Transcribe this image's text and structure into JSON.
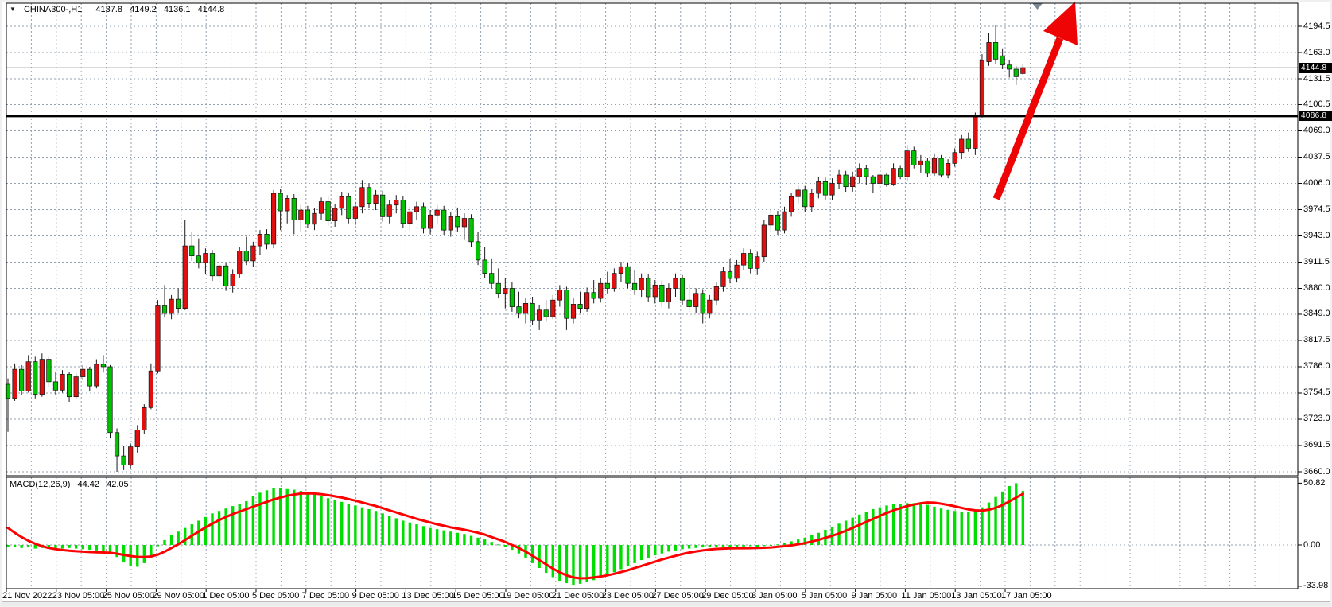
{
  "window": {
    "symbol_timeframe": "CHINA300-,H1",
    "ohlc": {
      "open": "4137.8",
      "high": "4149.2",
      "low": "4136.1",
      "close": "4144.8"
    }
  },
  "price_axis": {
    "current_price_badge": "4144.8",
    "line_price_badge": "4086.8"
  },
  "macd_panel": {
    "label": "MACD(12,26,9)",
    "main_value": "44.42",
    "signal_value": "42.05"
  },
  "colors": {
    "bull_candle": "#e01010",
    "bear_candle": "#00c400",
    "macd_histogram": "#00dd00",
    "macd_signal": "#ff0000",
    "support_line": "#000000",
    "arrow": "#ee0404",
    "grid": "#93a1b1",
    "badge_bg": "#000000",
    "badge_text": "#ffffff"
  },
  "chart_data": {
    "type": "candlestick",
    "symbol": "CHINA300-",
    "timeframe": "H1",
    "title": "CHINA300-,H1  4137.8 4149.2 4136.1 4144.8",
    "legend_position": "none",
    "grid": true,
    "price_axis_ticks": [
      4194.5,
      4163.0,
      4131.5,
      4100.5,
      4069.0,
      4037.5,
      4006.0,
      3974.5,
      3943.0,
      3911.5,
      3880.0,
      3849.0,
      3817.5,
      3786.0,
      3754.5,
      3723.0,
      3691.5,
      3660.0
    ],
    "time_axis_ticks": [
      "21 Nov 2022",
      "23 Nov 05:00",
      "25 Nov 05:00",
      "29 Nov 05:00",
      "1 Dec 05:00",
      "5 Dec 05:00",
      "7 Dec 05:00",
      "9 Dec 05:00",
      "13 Dec 05:00",
      "15 Dec 05:00",
      "19 Dec 05:00",
      "21 Dec 05:00",
      "23 Dec 05:00",
      "27 Dec 05:00",
      "29 Dec 05:00",
      "3 Jan 05:00",
      "5 Jan 05:00",
      "9 Jan 05:00",
      "11 Jan 05:00",
      "13 Jan 05:00",
      "17 Jan 05:00"
    ],
    "horizontal_line_price": 4086.8,
    "current_price": 4144.8,
    "last_bar_ohlc": [
      4137.8,
      4149.2,
      4136.1,
      4144.8
    ],
    "candles_ohlc": [
      [
        3765,
        3772,
        3708,
        3748
      ],
      [
        3748,
        3790,
        3745,
        3783
      ],
      [
        3783,
        3788,
        3752,
        3757
      ],
      [
        3757,
        3800,
        3755,
        3792
      ],
      [
        3792,
        3798,
        3748,
        3753
      ],
      [
        3753,
        3802,
        3750,
        3795
      ],
      [
        3795,
        3798,
        3762,
        3768
      ],
      [
        3768,
        3780,
        3752,
        3758
      ],
      [
        3758,
        3782,
        3755,
        3777
      ],
      [
        3777,
        3780,
        3744,
        3750
      ],
      [
        3750,
        3778,
        3747,
        3774
      ],
      [
        3774,
        3788,
        3770,
        3783
      ],
      [
        3783,
        3786,
        3757,
        3763
      ],
      [
        3763,
        3795,
        3760,
        3789
      ],
      [
        3789,
        3800,
        3779,
        3786
      ],
      [
        3786,
        3788,
        3700,
        3707
      ],
      [
        3707,
        3712,
        3660,
        3679
      ],
      [
        3679,
        3691,
        3662,
        3668
      ],
      [
        3668,
        3694,
        3664,
        3690
      ],
      [
        3690,
        3716,
        3683,
        3710
      ],
      [
        3710,
        3741,
        3705,
        3737
      ],
      [
        3737,
        3790,
        3735,
        3781
      ],
      [
        3781,
        3866,
        3778,
        3859
      ],
      [
        3859,
        3884,
        3845,
        3850
      ],
      [
        3850,
        3872,
        3843,
        3867
      ],
      [
        3867,
        3880,
        3851,
        3856
      ],
      [
        3856,
        3962,
        3854,
        3931
      ],
      [
        3931,
        3948,
        3913,
        3919
      ],
      [
        3919,
        3940,
        3904,
        3911
      ],
      [
        3911,
        3928,
        3897,
        3922
      ],
      [
        3922,
        3926,
        3889,
        3895
      ],
      [
        3895,
        3913,
        3887,
        3907
      ],
      [
        3907,
        3911,
        3877,
        3883
      ],
      [
        3883,
        3903,
        3875,
        3897
      ],
      [
        3897,
        3930,
        3892,
        3925
      ],
      [
        3925,
        3942,
        3908,
        3913
      ],
      [
        3913,
        3936,
        3906,
        3931
      ],
      [
        3931,
        3950,
        3920,
        3945
      ],
      [
        3945,
        3951,
        3927,
        3933
      ],
      [
        3933,
        3998,
        3928,
        3994
      ],
      [
        3994,
        3999,
        3950,
        3973
      ],
      [
        3973,
        3992,
        3958,
        3988
      ],
      [
        3988,
        3993,
        3945,
        3962
      ],
      [
        3962,
        3980,
        3948,
        3974
      ],
      [
        3974,
        3979,
        3952,
        3957
      ],
      [
        3957,
        3976,
        3950,
        3970
      ],
      [
        3970,
        3989,
        3962,
        3984
      ],
      [
        3984,
        3990,
        3955,
        3961
      ],
      [
        3961,
        3981,
        3954,
        3976
      ],
      [
        3976,
        3996,
        3968,
        3990
      ],
      [
        3990,
        3995,
        3958,
        3964
      ],
      [
        3964,
        3984,
        3956,
        3978
      ],
      [
        3978,
        4010,
        3970,
        4001
      ],
      [
        4001,
        4006,
        3976,
        3982
      ],
      [
        3982,
        3998,
        3974,
        3992
      ],
      [
        3992,
        3997,
        3960,
        3966
      ],
      [
        3966,
        3986,
        3958,
        3980
      ],
      [
        3980,
        3992,
        3970,
        3986
      ],
      [
        3986,
        3991,
        3952,
        3958
      ],
      [
        3958,
        3978,
        3950,
        3972
      ],
      [
        3972,
        3984,
        3962,
        3978
      ],
      [
        3978,
        3983,
        3946,
        3952
      ],
      [
        3952,
        3974,
        3945,
        3968
      ],
      [
        3968,
        3980,
        3958,
        3974
      ],
      [
        3974,
        3979,
        3944,
        3950
      ],
      [
        3950,
        3972,
        3942,
        3966
      ],
      [
        3966,
        3977,
        3948,
        3954
      ],
      [
        3954,
        3970,
        3938,
        3964
      ],
      [
        3964,
        3969,
        3930,
        3936
      ],
      [
        3936,
        3948,
        3908,
        3914
      ],
      [
        3914,
        3930,
        3892,
        3898
      ],
      [
        3898,
        3916,
        3880,
        3886
      ],
      [
        3886,
        3904,
        3868,
        3874
      ],
      [
        3874,
        3892,
        3856,
        3880
      ],
      [
        3880,
        3888,
        3852,
        3858
      ],
      [
        3858,
        3876,
        3844,
        3850
      ],
      [
        3850,
        3868,
        3838,
        3862
      ],
      [
        3862,
        3870,
        3836,
        3842
      ],
      [
        3842,
        3860,
        3830,
        3854
      ],
      [
        3854,
        3866,
        3840,
        3846
      ],
      [
        3846,
        3872,
        3843,
        3866
      ],
      [
        3866,
        3884,
        3858,
        3878
      ],
      [
        3878,
        3882,
        3830,
        3844
      ],
      [
        3844,
        3868,
        3838,
        3861
      ],
      [
        3861,
        3876,
        3850,
        3856
      ],
      [
        3856,
        3881,
        3852,
        3875
      ],
      [
        3875,
        3890,
        3862,
        3868
      ],
      [
        3868,
        3892,
        3863,
        3886
      ],
      [
        3886,
        3900,
        3874,
        3880
      ],
      [
        3880,
        3904,
        3876,
        3898
      ],
      [
        3898,
        3912,
        3888,
        3906
      ],
      [
        3906,
        3911,
        3880,
        3886
      ],
      [
        3886,
        3902,
        3872,
        3878
      ],
      [
        3878,
        3898,
        3870,
        3892
      ],
      [
        3892,
        3897,
        3864,
        3870
      ],
      [
        3870,
        3890,
        3862,
        3884
      ],
      [
        3884,
        3889,
        3858,
        3864
      ],
      [
        3864,
        3886,
        3856,
        3880
      ],
      [
        3880,
        3898,
        3870,
        3892
      ],
      [
        3892,
        3896,
        3860,
        3866
      ],
      [
        3866,
        3884,
        3852,
        3858
      ],
      [
        3858,
        3880,
        3850,
        3874
      ],
      [
        3874,
        3879,
        3838,
        3850
      ],
      [
        3850,
        3872,
        3844,
        3866
      ],
      [
        3866,
        3888,
        3860,
        3882
      ],
      [
        3882,
        3906,
        3876,
        3900
      ],
      [
        3900,
        3916,
        3886,
        3892
      ],
      [
        3892,
        3914,
        3887,
        3908
      ],
      [
        3908,
        3928,
        3902,
        3922
      ],
      [
        3922,
        3927,
        3898,
        3904
      ],
      [
        3904,
        3924,
        3896,
        3918
      ],
      [
        3918,
        3962,
        3912,
        3956
      ],
      [
        3956,
        3974,
        3948,
        3968
      ],
      [
        3968,
        3973,
        3944,
        3950
      ],
      [
        3950,
        3978,
        3946,
        3972
      ],
      [
        3972,
        3995,
        3966,
        3990
      ],
      [
        3990,
        4004,
        3982,
        3998
      ],
      [
        3998,
        4003,
        3972,
        3978
      ],
      [
        3978,
        3999,
        3972,
        3994
      ],
      [
        3994,
        4014,
        3988,
        4008
      ],
      [
        4008,
        4013,
        3986,
        3992
      ],
      [
        3992,
        4012,
        3986,
        4006
      ],
      [
        4006,
        4022,
        3999,
        4016
      ],
      [
        4016,
        4021,
        3996,
        4002
      ],
      [
        4002,
        4020,
        3996,
        4014
      ],
      [
        4014,
        4030,
        4006,
        4024
      ],
      [
        4024,
        4028,
        4004,
        4014
      ],
      [
        4014,
        4016,
        3994,
        4006
      ],
      [
        4006,
        4018,
        3998,
        4016
      ],
      [
        4016,
        4019,
        4002,
        4005
      ],
      [
        4005,
        4030,
        4003,
        4024
      ],
      [
        4024,
        4027,
        4011,
        4014
      ],
      [
        4014,
        4052,
        4009,
        4045
      ],
      [
        4045,
        4050,
        4024,
        4028
      ],
      [
        4028,
        4040,
        4019,
        4033
      ],
      [
        4033,
        4037,
        4014,
        4018
      ],
      [
        4018,
        4042,
        4015,
        4036
      ],
      [
        4036,
        4040,
        4013,
        4016
      ],
      [
        4016,
        4035,
        4012,
        4030
      ],
      [
        4030,
        4048,
        4026,
        4043
      ],
      [
        4043,
        4064,
        4035,
        4059
      ],
      [
        4059,
        4067,
        4044,
        4048
      ],
      [
        4048,
        4091,
        4040,
        4086.5
      ],
      [
        4086.8,
        4161,
        4085,
        4153.5
      ],
      [
        4152,
        4186,
        4147,
        4175
      ],
      [
        4175,
        4196,
        4149,
        4155
      ],
      [
        4159,
        4168,
        4143,
        4148
      ],
      [
        4148,
        4154,
        4133,
        4143
      ],
      [
        4143,
        4147,
        4124,
        4134
      ],
      [
        4137.8,
        4149.2,
        4136.1,
        4144.8
      ]
    ],
    "indicator": {
      "name": "MACD(12,26,9)",
      "last_histogram": 44.42,
      "last_signal": 42.05,
      "scale": {
        "max": 50.82,
        "zero": 0.0,
        "min": -33.98
      },
      "histogram": [
        -1.5,
        -2,
        -2.5,
        -2,
        -3,
        -2.5,
        -3,
        -3.5,
        -3,
        -2.5,
        -3,
        -3.5,
        -4,
        -4.5,
        -5,
        -7,
        -10,
        -14,
        -17,
        -18,
        -15,
        -9,
        -1,
        4,
        8,
        11,
        14,
        17,
        20,
        23,
        26,
        28,
        30,
        32,
        34,
        36,
        40,
        43,
        45,
        47,
        46.5,
        46,
        45.5,
        44.5,
        43,
        41.5,
        40,
        38.5,
        37,
        35.5,
        34,
        32.5,
        31,
        29.5,
        28,
        26,
        24,
        22,
        20,
        18.5,
        17,
        15.5,
        14,
        13,
        12,
        11,
        10,
        9,
        7.5,
        6,
        4.5,
        2.5,
        0.5,
        -1.5,
        -4,
        -7,
        -11,
        -15,
        -19,
        -23,
        -26.5,
        -29.5,
        -31.5,
        -32.8,
        -32,
        -30.5,
        -29,
        -27,
        -25,
        -22.5,
        -20,
        -17.5,
        -15,
        -12.5,
        -10.5,
        -8.5,
        -7,
        -5.5,
        -4.5,
        -3.5,
        -3,
        -2.5,
        -2,
        -2,
        -1.5,
        -2,
        -1.5,
        -2,
        -1.5,
        -1,
        -1.5,
        -1,
        -0.5,
        0.5,
        1.5,
        3,
        4.5,
        6,
        8,
        10,
        12.5,
        15,
        17.5,
        20,
        22.5,
        25,
        27.5,
        29.5,
        31,
        32.5,
        33.5,
        34,
        34.5,
        34.5,
        34,
        33,
        31.5,
        30,
        29,
        28,
        27.5,
        27.5,
        28.5,
        31,
        35,
        39.5,
        44,
        48.5,
        50.82,
        44.42
      ],
      "signal": [
        14,
        10,
        6.5,
        3.5,
        1,
        -1,
        -2.5,
        -3.5,
        -4.2,
        -4.8,
        -5.2,
        -5.5,
        -5.8,
        -6,
        -6.2,
        -6.5,
        -7.2,
        -8.2,
        -9.2,
        -9.8,
        -10,
        -9.5,
        -8,
        -5.5,
        -2.5,
        0.5,
        4,
        7.5,
        11,
        14.5,
        17.5,
        20.5,
        23,
        25.5,
        27.5,
        29.5,
        31.5,
        33.5,
        35.5,
        37.5,
        39,
        40.5,
        41.5,
        42.3,
        42.5,
        42.3,
        41.8,
        41,
        40,
        39,
        37.8,
        36.5,
        35,
        33.5,
        32,
        30.3,
        28.5,
        26.8,
        25,
        23.3,
        21.5,
        20,
        18.5,
        17,
        15.8,
        14.5,
        13.5,
        12.5,
        11.3,
        10,
        8.5,
        6.5,
        4.5,
        2.5,
        0,
        -2.5,
        -5.5,
        -9,
        -12.5,
        -16,
        -19.5,
        -22.5,
        -25,
        -26.8,
        -27.5,
        -27.3,
        -26.8,
        -26,
        -25,
        -23.8,
        -22.3,
        -20.8,
        -19,
        -17.3,
        -15.5,
        -13.8,
        -12,
        -10.5,
        -9,
        -7.5,
        -6.3,
        -5.3,
        -4.5,
        -3.8,
        -3.3,
        -3,
        -2.8,
        -2.7,
        -2.7,
        -2.6,
        -2.5,
        -2.3,
        -2,
        -1.5,
        -1,
        -0.3,
        0.5,
        1.5,
        2.8,
        4.2,
        5.8,
        7.5,
        9.5,
        11.7,
        14,
        16.5,
        19,
        21.5,
        24,
        26.3,
        28.5,
        30.3,
        32,
        33.3,
        34.3,
        35,
        34.8,
        34,
        33,
        31.8,
        30.5,
        29.3,
        28.5,
        28.2,
        29,
        30.5,
        32.8,
        35.8,
        39,
        42.05
      ]
    },
    "annotation": {
      "type": "up-trend-arrow",
      "color": "red"
    }
  }
}
